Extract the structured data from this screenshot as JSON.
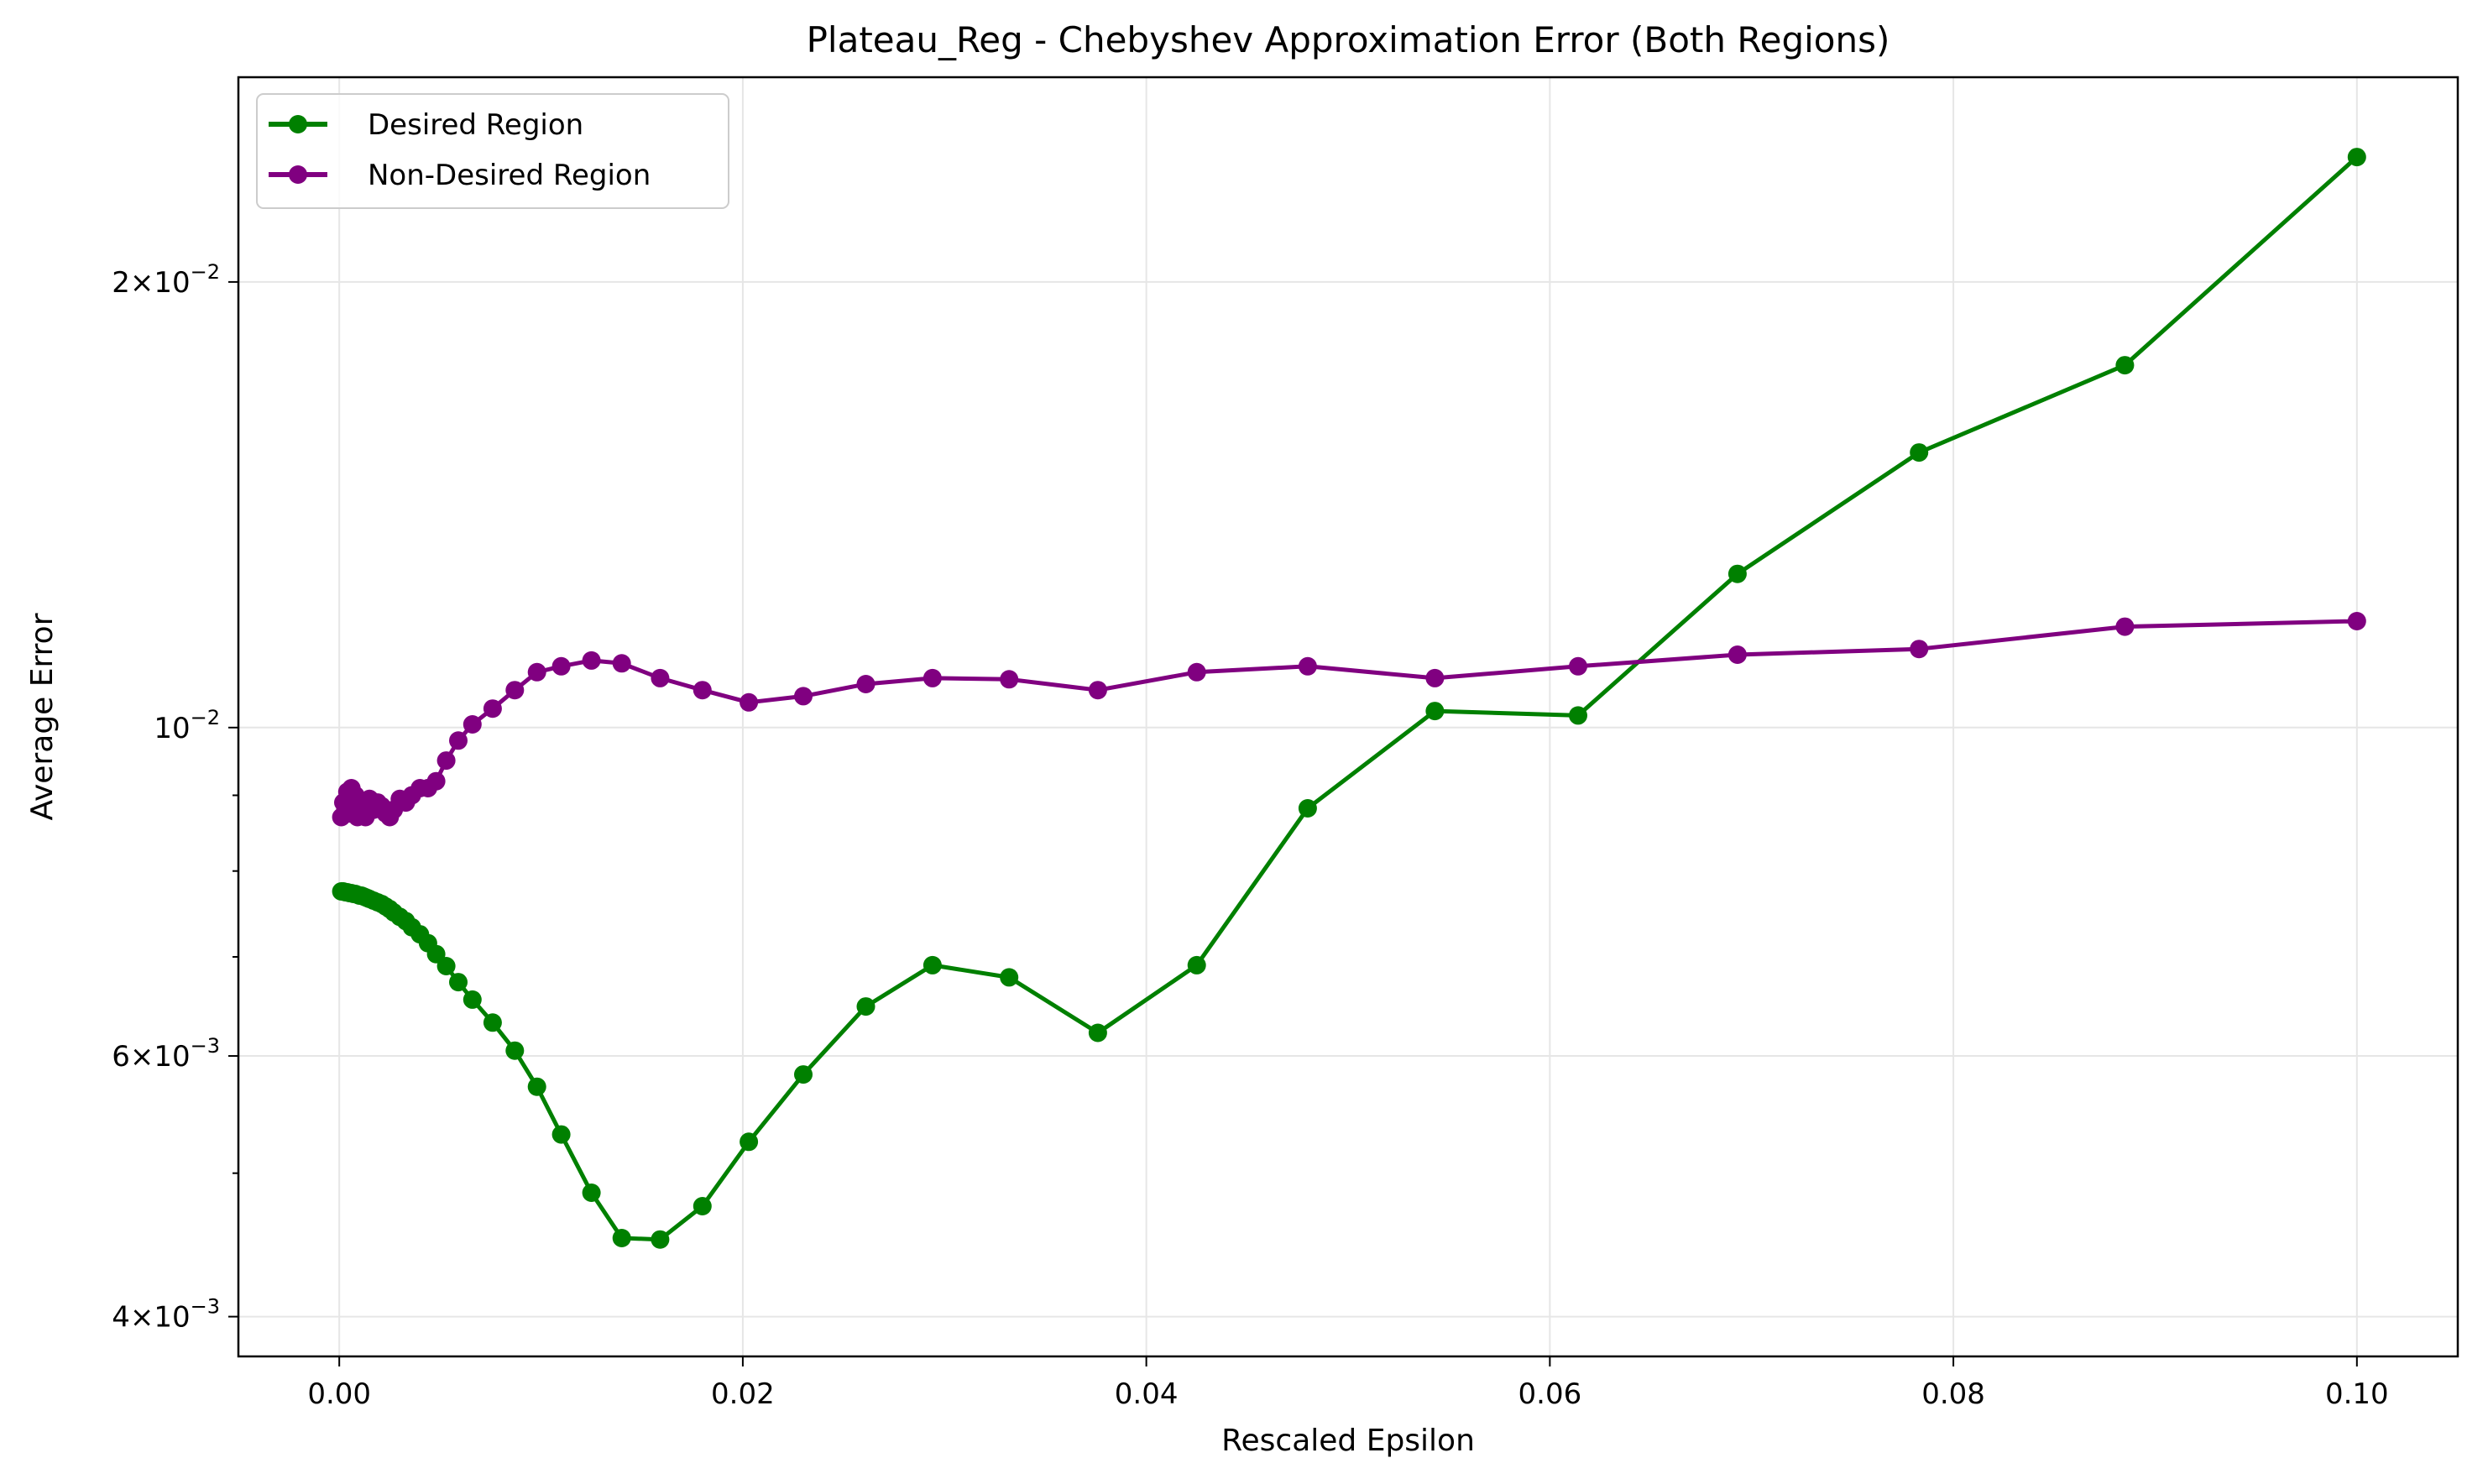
{
  "chart_data": {
    "type": "line",
    "title": "Plateau_Reg - Chebyshev Approximation Error (Both Regions)",
    "xlabel": "Rescaled Epsilon",
    "ylabel": "Average Error",
    "xscale": "linear",
    "yscale": "log",
    "xlim": [
      -0.005,
      0.105
    ],
    "ylim": [
      0.00376,
      0.0275
    ],
    "grid": true,
    "legend_position": "top-left",
    "x_ticks": [
      "0.00",
      "0.02",
      "0.04",
      "0.06",
      "0.08",
      "0.10"
    ],
    "x_tick_values": [
      0.0,
      0.02,
      0.04,
      0.06,
      0.08,
      0.1
    ],
    "y_ticks": [
      {
        "value": 0.004,
        "mant": "4",
        "exp": "−3"
      },
      {
        "value": 0.006,
        "mant": "6",
        "exp": "−3"
      },
      {
        "value": 0.01,
        "mant": "",
        "exp": "−2"
      },
      {
        "value": 0.02,
        "mant": "2",
        "exp": "−2"
      }
    ],
    "y_minor_ticks": [
      0.005,
      0.007,
      0.008,
      0.009
    ],
    "series": [
      {
        "name": "Desired Region",
        "color": "#008000",
        "x": [
          0.0001,
          0.0002,
          0.0003,
          0.0004,
          0.0005,
          0.0006,
          0.0007,
          0.0008,
          0.0009,
          0.001,
          0.0011,
          0.0012,
          0.0013,
          0.0014,
          0.0015,
          0.0017,
          0.0019,
          0.0021,
          0.0023,
          0.0025,
          0.0027,
          0.003,
          0.0033,
          0.0036,
          0.004,
          0.0044,
          0.0048,
          0.0053,
          0.0059,
          0.0066,
          0.0076,
          0.0087,
          0.0098,
          0.011,
          0.0125,
          0.014,
          0.0159,
          0.018,
          0.0203,
          0.023,
          0.0261,
          0.0294,
          0.0332,
          0.0376,
          0.0425,
          0.048,
          0.0543,
          0.0614,
          0.0693,
          0.0783,
          0.0885,
          0.1
        ],
        "y": [
          0.00775,
          0.00775,
          0.00774,
          0.00774,
          0.00773,
          0.00773,
          0.00772,
          0.00772,
          0.00771,
          0.0077,
          0.0077,
          0.00769,
          0.00768,
          0.00767,
          0.00766,
          0.00764,
          0.00762,
          0.0076,
          0.00757,
          0.00754,
          0.0075,
          0.00745,
          0.0074,
          0.00733,
          0.00725,
          0.00715,
          0.00703,
          0.0069,
          0.00673,
          0.00655,
          0.00632,
          0.00605,
          0.00572,
          0.00531,
          0.00485,
          0.00452,
          0.00451,
          0.00475,
          0.00525,
          0.00583,
          0.00648,
          0.00691,
          0.00678,
          0.00622,
          0.00691,
          0.00882,
          0.01026,
          0.01019,
          0.0127,
          0.01534,
          0.01757,
          0.02429
        ]
      },
      {
        "name": "Non-Desired Region",
        "color": "#800080",
        "x": [
          0.0001,
          0.0002,
          0.0003,
          0.0004,
          0.0005,
          0.0006,
          0.0007,
          0.0008,
          0.0009,
          0.001,
          0.0011,
          0.0012,
          0.0013,
          0.0014,
          0.0015,
          0.0017,
          0.0019,
          0.0021,
          0.0023,
          0.0025,
          0.0027,
          0.003,
          0.0033,
          0.0036,
          0.004,
          0.0044,
          0.0048,
          0.0053,
          0.0059,
          0.0066,
          0.0076,
          0.0087,
          0.0098,
          0.011,
          0.0125,
          0.014,
          0.0159,
          0.018,
          0.0203,
          0.023,
          0.0261,
          0.0294,
          0.0332,
          0.0376,
          0.0425,
          0.048,
          0.0543,
          0.0614,
          0.0693,
          0.0783,
          0.0885,
          0.1
        ],
        "y": [
          0.0087,
          0.0089,
          0.0088,
          0.00905,
          0.00875,
          0.0091,
          0.0088,
          0.009,
          0.0087,
          0.0089,
          0.00875,
          0.00885,
          0.0087,
          0.0088,
          0.00895,
          0.0088,
          0.0089,
          0.00885,
          0.00875,
          0.0087,
          0.0088,
          0.00895,
          0.0089,
          0.009,
          0.0091,
          0.0091,
          0.0092,
          0.0095,
          0.0098,
          0.01005,
          0.0103,
          0.0106,
          0.0109,
          0.011,
          0.0111,
          0.01105,
          0.0108,
          0.0106,
          0.0104,
          0.0105,
          0.0107,
          0.0108,
          0.01078,
          0.0106,
          0.0109,
          0.011,
          0.0108,
          0.011,
          0.0112,
          0.0113,
          0.0117,
          0.0118
        ]
      }
    ]
  }
}
